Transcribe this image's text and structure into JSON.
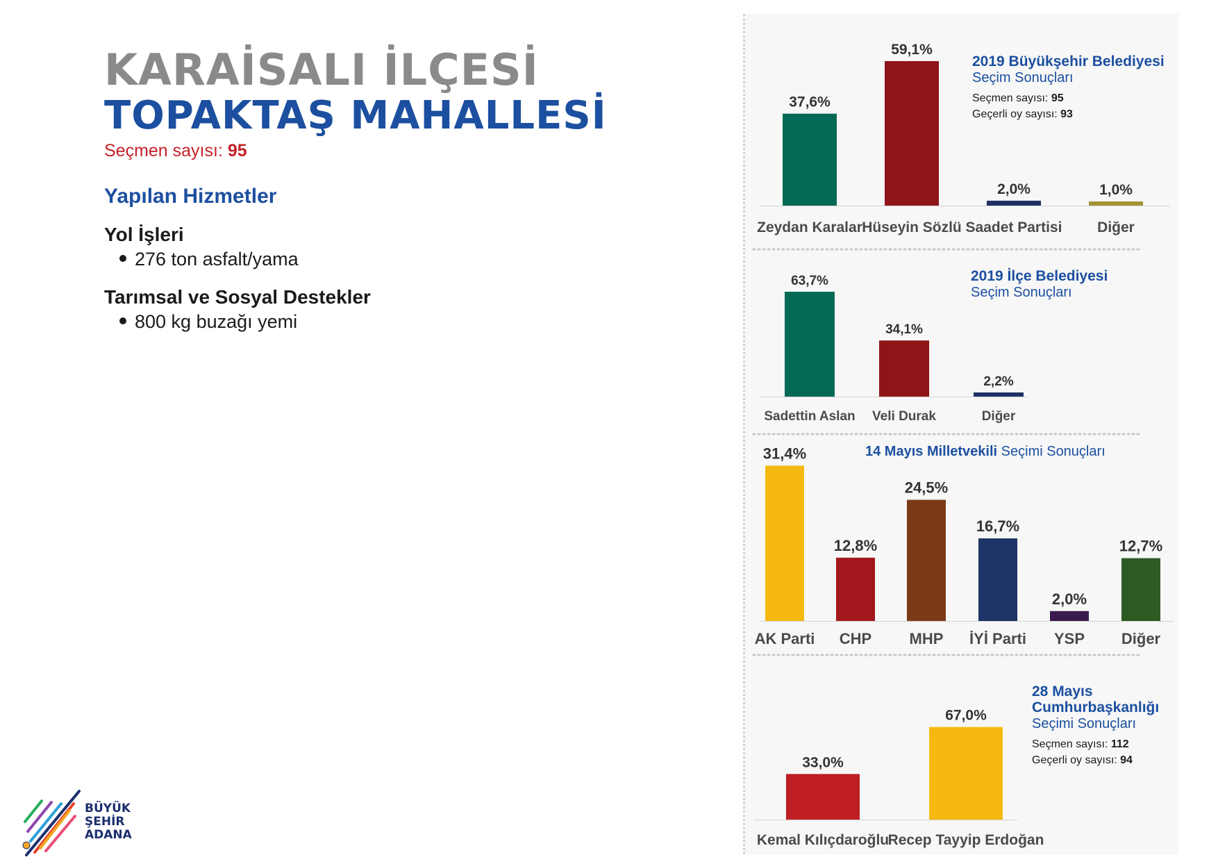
{
  "header": {
    "district": "KARAİSALI İLÇESİ",
    "neighborhood": "TOPAKTAŞ MAHALLESİ",
    "voters_label": "Seçmen sayısı:",
    "voters_value": "95"
  },
  "services": {
    "title": "Yapılan Hizmetler",
    "groups": [
      {
        "name": "Yol İşleri",
        "items": [
          "276 ton asfalt/yama"
        ]
      },
      {
        "name": "Tarımsal ve Sosyal Destekler",
        "items": [
          "800 kg buzağı yemi"
        ]
      }
    ]
  },
  "logo": {
    "line1": "BÜYÜK",
    "line2": "ŞEHİR",
    "line3": "ADANA"
  },
  "chart_data": [
    {
      "type": "bar",
      "title": "2019 Büyükşehir Belediyesi",
      "subtitle": "Seçim Sonuçları",
      "notes": [
        {
          "label": "Seçmen sayısı:",
          "value": "95"
        },
        {
          "label": "Geçerli oy sayısı:",
          "value": "93"
        }
      ],
      "categories": [
        "Zeydan Karalar",
        "Hüseyin Sözlü",
        "Saadet Partisi",
        "Diğer"
      ],
      "values": [
        37.6,
        59.1,
        2.0,
        1.0
      ],
      "labels": [
        "37,6%",
        "59,1%",
        "2,0%",
        "1,0%"
      ],
      "colors": [
        "#046a55",
        "#8e1418",
        "#1f3064",
        "#a49436"
      ]
    },
    {
      "type": "bar",
      "title": "2019 İlçe Belediyesi",
      "subtitle": "Seçim Sonuçları",
      "notes": [],
      "categories": [
        "Sadettin Aslan",
        "Veli Durak",
        "Diğer"
      ],
      "values": [
        63.7,
        34.1,
        2.2
      ],
      "labels": [
        "63,7%",
        "34,1%",
        "2,2%"
      ],
      "colors": [
        "#046a55",
        "#8e1418",
        "#1f3064"
      ]
    },
    {
      "type": "bar",
      "title": "14 Mayıs Milletvekili",
      "subtitle": "Seçimi Sonuçları",
      "notes": [],
      "categories": [
        "AK Parti",
        "CHP",
        "MHP",
        "İYİ Parti",
        "YSP",
        "Diğer"
      ],
      "values": [
        31.4,
        12.8,
        24.5,
        16.7,
        2.0,
        12.7
      ],
      "labels": [
        "31,4%",
        "12,8%",
        "24,5%",
        "16,7%",
        "2,0%",
        "12,7%"
      ],
      "colors": [
        "#f5b90f",
        "#a3181c",
        "#7b3a16",
        "#1f3466",
        "#3b1a4d",
        "#2e5a24"
      ]
    },
    {
      "type": "bar",
      "title_lines": [
        "28 Mayıs",
        "Cumhurbaşkanlığı"
      ],
      "subtitle": "Seçimi Sonuçları",
      "notes": [
        {
          "label": "Seçmen sayısı:",
          "value": "112"
        },
        {
          "label": "Geçerli oy sayısı:",
          "value": "94"
        }
      ],
      "categories": [
        "Kemal Kılıçdaroğlu",
        "Recep Tayyip Erdoğan"
      ],
      "values": [
        33.0,
        67.0
      ],
      "labels": [
        "33,0%",
        "67,0%"
      ],
      "colors": [
        "#be1e24",
        "#f5b90f"
      ]
    }
  ]
}
